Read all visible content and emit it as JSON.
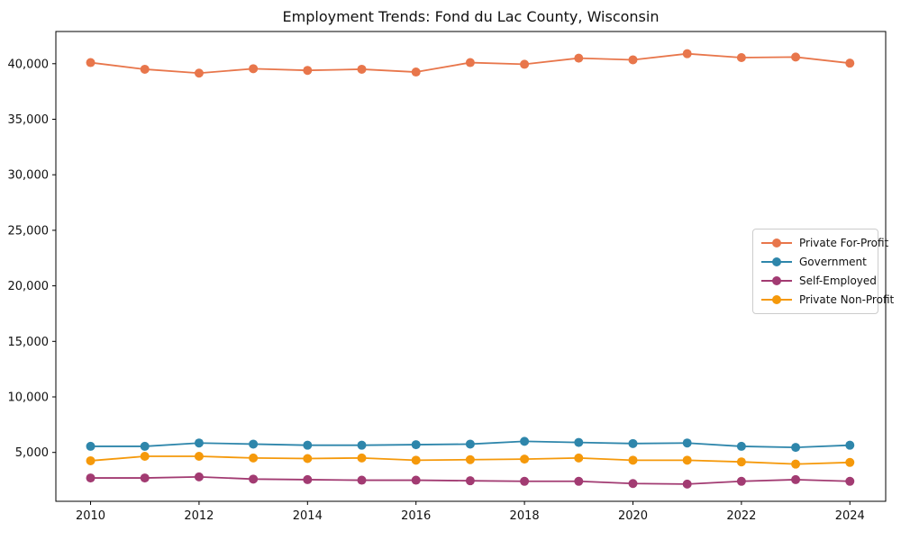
{
  "title": "Employment Trends: Fond du Lac County, Wisconsin",
  "chart_data": {
    "type": "line",
    "title": "Employment Trends: Fond du Lac County, Wisconsin",
    "xlabel": "",
    "ylabel": "",
    "x": [
      2010,
      2011,
      2012,
      2013,
      2014,
      2015,
      2016,
      2017,
      2018,
      2019,
      2020,
      2021,
      2022,
      2023,
      2024
    ],
    "series": [
      {
        "name": "Private For-Profit",
        "color": "#E8764B",
        "values": [
          40100,
          39500,
          39150,
          39550,
          39400,
          39500,
          39250,
          40100,
          39950,
          40500,
          40350,
          40900,
          40550,
          40600,
          40050
        ]
      },
      {
        "name": "Government",
        "color": "#2E86AB",
        "values": [
          5550,
          5550,
          5850,
          5750,
          5650,
          5650,
          5700,
          5750,
          6000,
          5900,
          5800,
          5850,
          5550,
          5450,
          5650
        ]
      },
      {
        "name": "Self-Employed",
        "color": "#A23B72",
        "values": [
          2700,
          2700,
          2800,
          2600,
          2550,
          2500,
          2500,
          2450,
          2400,
          2400,
          2200,
          2150,
          2400,
          2550,
          2400
        ]
      },
      {
        "name": "Private Non-Profit",
        "color": "#F5990B",
        "values": [
          4250,
          4650,
          4650,
          4500,
          4450,
          4500,
          4300,
          4350,
          4400,
          4500,
          4300,
          4300,
          4150,
          3950,
          4100
        ]
      }
    ],
    "xticks": [
      2010,
      2012,
      2014,
      2016,
      2018,
      2020,
      2022,
      2024
    ],
    "xtick_labels": [
      "2010",
      "2012",
      "2014",
      "2016",
      "2018",
      "2020",
      "2022",
      "2024"
    ],
    "yticks": [
      5000,
      10000,
      15000,
      20000,
      25000,
      30000,
      35000,
      40000
    ],
    "ytick_labels": [
      "5,000",
      "10,000",
      "15,000",
      "20,000",
      "25,000",
      "30,000",
      "35,000",
      "40,000"
    ],
    "xlim": [
      2009.36,
      2024.66
    ],
    "ylim": [
      600,
      42900
    ],
    "grid": false,
    "legend_position": "center right",
    "axis_color": "#000000",
    "marker": "circle",
    "marker_size": 10,
    "line_width": 1.8
  }
}
